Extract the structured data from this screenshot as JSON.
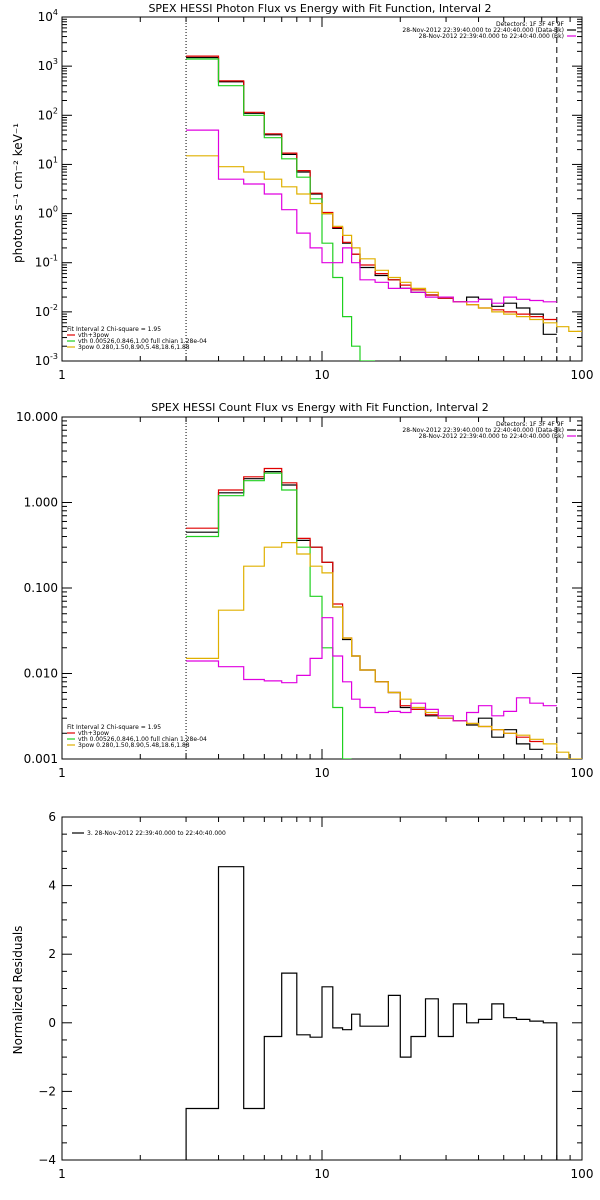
{
  "colors": {
    "black": "#000000",
    "red": "#e00000",
    "green": "#20d020",
    "yellow": "#e0b000",
    "magenta": "#e000e0"
  },
  "chart_data": [
    {
      "type": "line",
      "title": "SPEX HESSI Photon Flux vs Energy with Fit Function, Interval 2",
      "ylabel": "photons s⁻¹ cm⁻² keV⁻¹",
      "xscale": "log",
      "yscale": "log",
      "xlim": [
        1,
        100
      ],
      "ylim": [
        0.001,
        10000
      ],
      "x_ticks": [
        "1",
        "10",
        "100"
      ],
      "y_ticks": [
        {
          "base": "10",
          "exp": "-3"
        },
        {
          "base": "10",
          "exp": "-2"
        },
        {
          "base": "10",
          "exp": "-1"
        },
        {
          "base": "10",
          "exp": "0"
        },
        {
          "base": "10",
          "exp": "1"
        },
        {
          "base": "10",
          "exp": "2"
        },
        {
          "base": "10",
          "exp": "3"
        },
        {
          "base": "10",
          "exp": "4"
        }
      ],
      "vlines": [
        {
          "x": 3.0,
          "style": "dotted"
        },
        {
          "x": 80,
          "style": "dashed"
        }
      ],
      "legend_right": [
        "Detectors: 1F 3F 4F 9F",
        "28-Nov-2012 22:39:40.000 to 22:40:40.000 (Data-Bk)",
        "28-Nov-2012 22:39:40.000 to 22:40:40.000 (Bk)"
      ],
      "legend_right_colors": [
        "none",
        "#000000",
        "#e000e0"
      ],
      "legend_left": [
        "Fit Interval  2   Chi-square = 1.95",
        "vth+3pow",
        "vth 0.00526,0.846,1.00  full chian 1.28e-04",
        "3pow 0.280,1.50,8.90,5.48,18.6,1.88"
      ],
      "legend_left_colors": [
        "none",
        "#e00000",
        "#20d020",
        "#e0b000"
      ],
      "bin_edges": [
        3,
        4,
        5,
        6,
        7,
        8,
        9,
        10,
        11,
        12,
        13,
        14,
        16,
        18,
        20,
        22,
        25,
        28,
        32,
        36,
        40,
        45,
        50,
        56,
        63,
        71,
        80,
        89,
        100
      ],
      "series": [
        {
          "color": "#000000",
          "values": [
            1500,
            480,
            110,
            40,
            16,
            7,
            2.5,
            1.0,
            0.5,
            0.25,
            0.15,
            0.08,
            0.055,
            0.045,
            0.03,
            0.025,
            0.022,
            0.019,
            0.016,
            0.02,
            0.018,
            0.013,
            0.015,
            0.012,
            0.009,
            0.0035,
            null,
            null
          ]
        },
        {
          "color": "#e00000",
          "values": [
            1600,
            500,
            115,
            42,
            17,
            7.5,
            2.6,
            1.05,
            0.52,
            0.26,
            0.15,
            0.09,
            0.06,
            0.045,
            0.035,
            0.028,
            0.022,
            0.019,
            0.016,
            0.014,
            0.012,
            0.011,
            0.01,
            0.009,
            0.008,
            0.007,
            null,
            null
          ]
        },
        {
          "color": "#20d020",
          "values": [
            1400,
            400,
            100,
            35,
            13,
            5.5,
            2.0,
            0.25,
            0.05,
            0.008,
            0.002,
            0.0005,
            null,
            null,
            null,
            null,
            null,
            null,
            null,
            null,
            null,
            null,
            null,
            null,
            null,
            null,
            null,
            null
          ]
        },
        {
          "color": "#e0b000",
          "values": [
            15,
            9,
            7,
            5,
            3.5,
            2.5,
            1.6,
            1.0,
            0.55,
            0.36,
            0.2,
            0.12,
            0.07,
            0.05,
            0.04,
            0.03,
            0.025,
            0.02,
            0.016,
            0.014,
            0.012,
            0.01,
            0.009,
            0.008,
            0.007,
            0.006,
            0.005,
            0.004
          ]
        },
        {
          "color": "#e000e0",
          "values": [
            50,
            5.0,
            4.0,
            2.5,
            1.2,
            0.4,
            0.2,
            0.1,
            0.1,
            0.2,
            0.1,
            0.045,
            0.04,
            0.03,
            0.03,
            0.025,
            0.02,
            0.02,
            0.016,
            0.016,
            0.018,
            0.015,
            0.02,
            0.018,
            0.017,
            0.016,
            null,
            null
          ]
        }
      ]
    },
    {
      "type": "line",
      "title": "SPEX HESSI Count Flux vs Energy with Fit Function, Interval 2",
      "xscale": "log",
      "yscale": "log",
      "xlim": [
        1,
        100
      ],
      "ylim": [
        0.001,
        10
      ],
      "x_ticks": [
        "1",
        "10",
        "100"
      ],
      "y_ticks": [
        "0.001",
        "0.010",
        "0.100",
        "1.000",
        "10.000"
      ],
      "vlines": [
        {
          "x": 3.0,
          "style": "dotted"
        },
        {
          "x": 80,
          "style": "dashed"
        }
      ],
      "legend_right": [
        "Detectors: 1F 3F 4F 9F",
        "28-Nov-2012 22:39:40.000 to 22:40:40.000 (Data-Bk)",
        "28-Nov-2012 22:39:40.000 to 22:40:40.000 (Bk)"
      ],
      "legend_right_colors": [
        "none",
        "#000000",
        "#e000e0"
      ],
      "legend_left": [
        "Fit Interval  2   Chi-square = 1.95",
        "vth+3pow",
        "vth 0.00526,0.846,1.00  full chian 1.28e-04",
        "3pow 0.280,1.50,8.90,5.48,18.6,1.88"
      ],
      "legend_left_colors": [
        "none",
        "#e00000",
        "#20d020",
        "#e0b000"
      ],
      "bin_edges": [
        3,
        4,
        5,
        6,
        7,
        8,
        9,
        10,
        11,
        12,
        13,
        14,
        16,
        18,
        20,
        22,
        25,
        28,
        32,
        36,
        40,
        45,
        50,
        56,
        63,
        71,
        80,
        89,
        100
      ],
      "series": [
        {
          "color": "#000000",
          "values": [
            0.45,
            1.3,
            1.9,
            2.3,
            1.6,
            0.36,
            0.3,
            0.2,
            0.06,
            0.025,
            0.016,
            0.011,
            0.008,
            0.006,
            0.004,
            0.0038,
            0.0032,
            0.003,
            0.0028,
            0.0025,
            0.003,
            0.0018,
            0.0022,
            0.0015,
            0.0013,
            null,
            null,
            null
          ]
        },
        {
          "color": "#e00000",
          "values": [
            0.5,
            1.4,
            2.0,
            2.5,
            1.7,
            0.38,
            0.3,
            0.2,
            0.065,
            0.026,
            0.016,
            0.011,
            0.008,
            0.006,
            0.0042,
            0.0038,
            0.0033,
            0.003,
            0.0028,
            0.0026,
            0.0024,
            0.0022,
            0.002,
            0.0018,
            0.0016,
            null,
            null,
            null
          ]
        },
        {
          "color": "#20d020",
          "values": [
            0.4,
            1.2,
            1.8,
            2.2,
            1.4,
            0.3,
            0.08,
            0.02,
            0.004,
            0.0009,
            null,
            null,
            null,
            null,
            null,
            null,
            null,
            null,
            null,
            null,
            null,
            null,
            null,
            null,
            null,
            null,
            null,
            null
          ]
        },
        {
          "color": "#e0b000",
          "values": [
            0.015,
            0.055,
            0.18,
            0.3,
            0.34,
            0.25,
            0.18,
            0.15,
            0.06,
            0.026,
            0.016,
            0.011,
            0.008,
            0.006,
            0.005,
            0.004,
            0.0035,
            0.003,
            0.0028,
            0.0026,
            0.0024,
            0.0022,
            0.002,
            0.0019,
            0.0017,
            0.0015,
            0.0012,
            0.001
          ]
        },
        {
          "color": "#e000e0",
          "values": [
            0.014,
            0.012,
            0.0085,
            0.0082,
            0.0078,
            0.0095,
            0.015,
            0.045,
            0.016,
            0.008,
            0.005,
            0.004,
            0.0035,
            0.0036,
            0.0035,
            0.0045,
            0.0038,
            0.0032,
            0.0028,
            0.0035,
            0.0042,
            0.0032,
            0.0036,
            0.0052,
            0.0045,
            0.0042,
            null,
            null
          ]
        }
      ]
    },
    {
      "type": "line",
      "ylabel": "Normalized Residuals",
      "xscale": "log",
      "yscale": "linear",
      "xlim": [
        1,
        100
      ],
      "ylim": [
        -4,
        6
      ],
      "x_ticks": [
        "1",
        "10",
        "100"
      ],
      "y_ticks": [
        "−4",
        "−2",
        "0",
        "2",
        "4",
        "6"
      ],
      "legend": "3. 28-Nov-2012 22:39:40.000 to 22:40:40.000",
      "bin_edges": [
        3,
        4,
        5,
        6,
        7,
        8,
        9,
        10,
        11,
        12,
        13,
        14,
        16,
        18,
        20,
        22,
        25,
        28,
        32,
        36,
        40,
        45,
        50,
        56,
        63,
        71,
        80
      ],
      "series": [
        {
          "color": "#000000",
          "values": [
            -2.5,
            4.55,
            -2.5,
            -0.4,
            1.45,
            -0.35,
            -0.42,
            1.05,
            -0.15,
            -0.2,
            0.25,
            -0.1,
            -0.1,
            0.8,
            -1.0,
            -0.4,
            0.7,
            -0.4,
            0.55,
            0.0,
            0.1,
            0.55,
            0.15,
            0.1,
            0.05,
            0.0
          ]
        }
      ]
    }
  ]
}
